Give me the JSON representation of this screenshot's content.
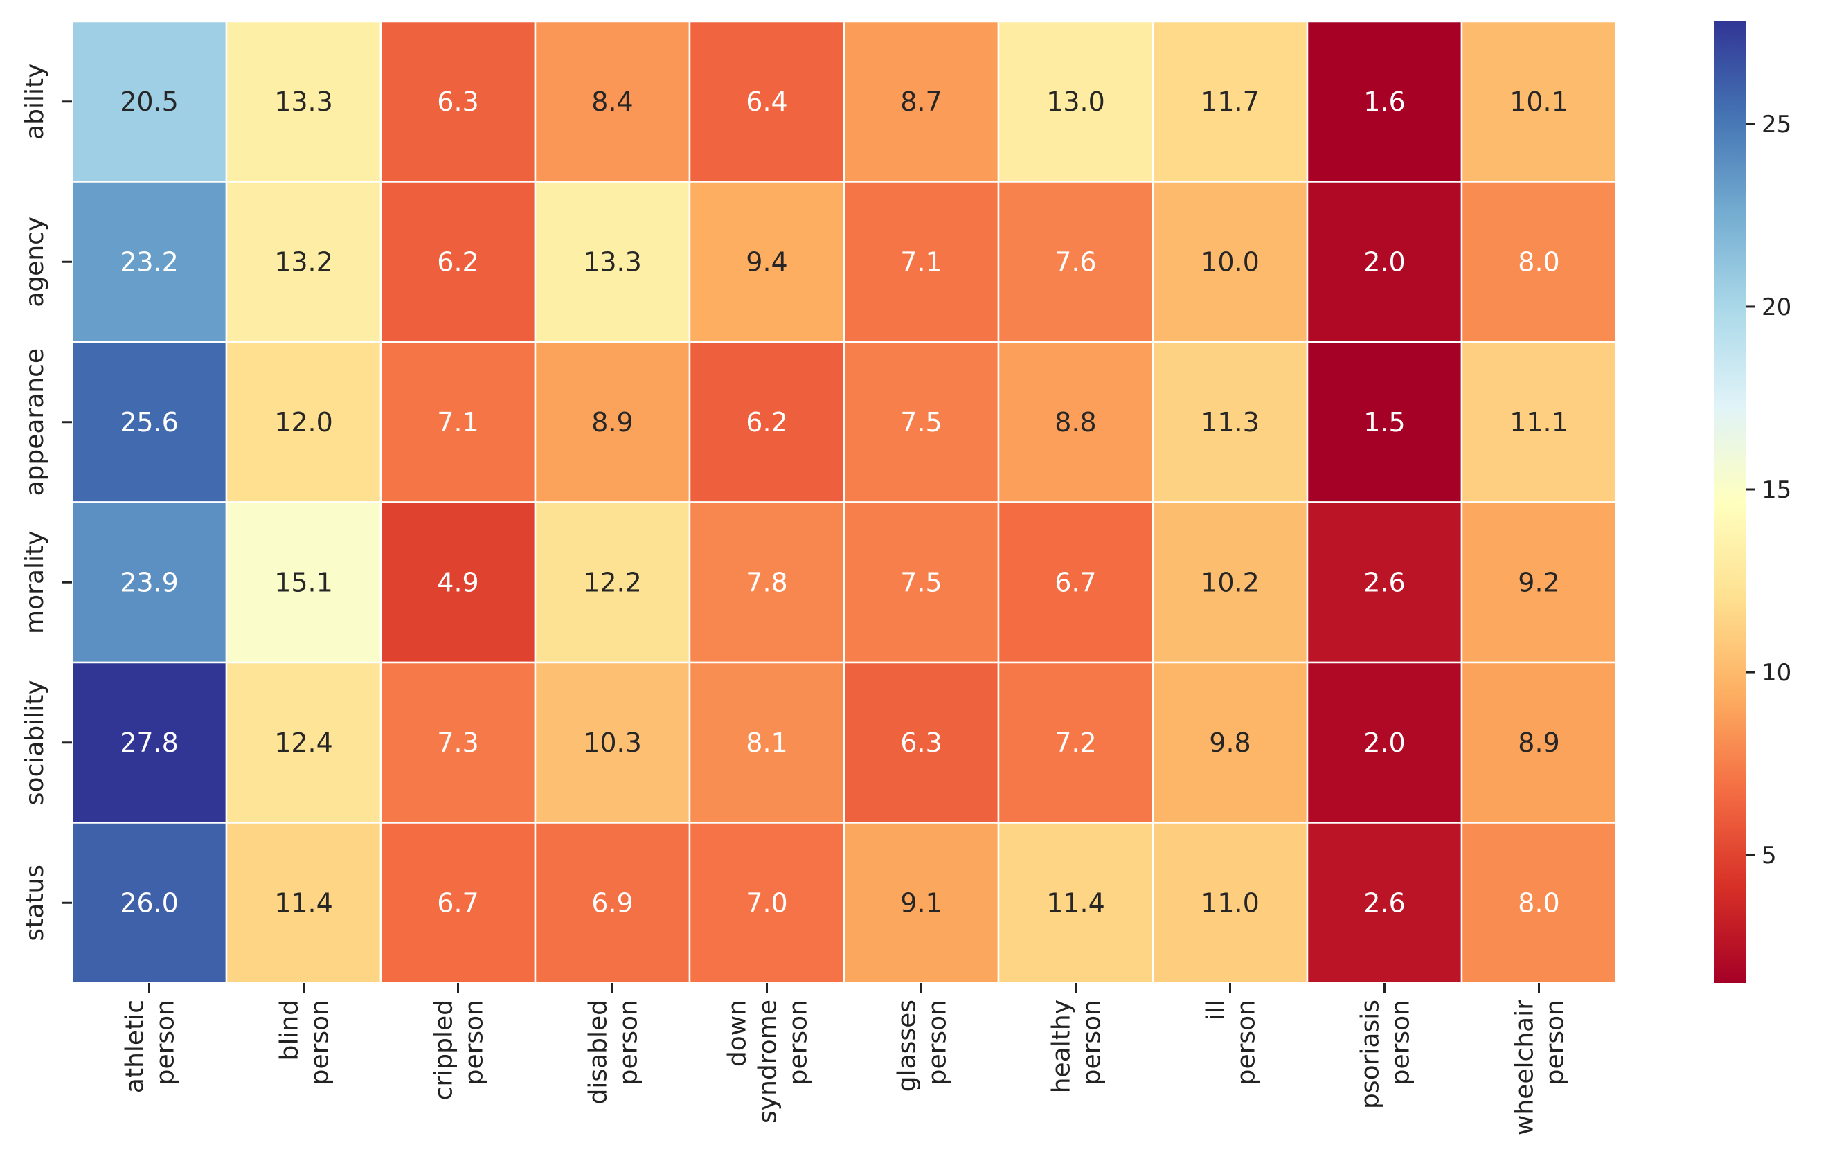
{
  "chart_data": {
    "type": "heatmap",
    "title": "",
    "xlabel": "",
    "ylabel": "",
    "rows": [
      "ability",
      "agency",
      "appearance",
      "morality",
      "sociability",
      "status"
    ],
    "columns": [
      [
        "athletic",
        "person"
      ],
      [
        "blind",
        "person"
      ],
      [
        "crippled",
        "person"
      ],
      [
        "disabled",
        "person"
      ],
      [
        "down",
        "syndrome",
        "person"
      ],
      [
        "glasses",
        "person"
      ],
      [
        "healthy",
        "person"
      ],
      [
        "ill",
        "person"
      ],
      [
        "psoriasis",
        "person"
      ],
      [
        "wheelchair",
        "person"
      ]
    ],
    "values": [
      [
        20.5,
        13.3,
        6.3,
        8.4,
        6.4,
        8.7,
        13.0,
        11.7,
        1.6,
        10.1
      ],
      [
        23.2,
        13.2,
        6.2,
        13.3,
        9.4,
        7.1,
        7.6,
        10.0,
        2.0,
        8.0
      ],
      [
        25.6,
        12.0,
        7.1,
        8.9,
        6.2,
        7.5,
        8.8,
        11.3,
        1.5,
        11.1
      ],
      [
        23.9,
        15.1,
        4.9,
        12.2,
        7.8,
        7.5,
        6.7,
        10.2,
        2.6,
        9.2
      ],
      [
        27.8,
        12.4,
        7.3,
        10.3,
        8.1,
        6.3,
        7.2,
        9.8,
        2.0,
        8.9
      ],
      [
        26.0,
        11.4,
        6.7,
        6.9,
        7.0,
        9.1,
        11.4,
        11.0,
        2.6,
        8.0
      ]
    ],
    "value_format": "0.0",
    "colorbar": {
      "colormap": "RdYlBu",
      "range": [
        1.5,
        27.8
      ],
      "ticks": [
        5,
        10,
        15,
        20,
        25
      ],
      "colors": [
        "#a50026",
        "#d73027",
        "#f46d43",
        "#fdae61",
        "#fee090",
        "#ffffbf",
        "#e0f3f8",
        "#abd9e9",
        "#74add1",
        "#4575b4",
        "#313695"
      ]
    },
    "cell_border_color": "#ffffff",
    "annotation_colors": {
      "dark": "#262626",
      "light": "#ffffff"
    }
  }
}
